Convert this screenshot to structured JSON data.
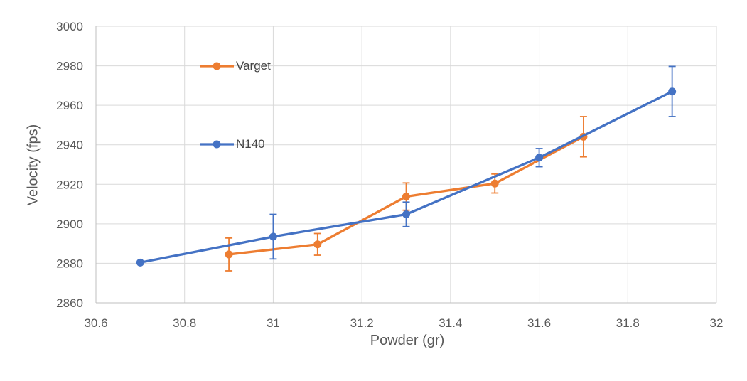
{
  "chart_data": {
    "type": "line",
    "title": "",
    "xlabel": "Powder (gr)",
    "ylabel": "Velocity (fps)",
    "xlim": [
      30.6,
      32
    ],
    "ylim": [
      2860,
      3000
    ],
    "grid": true,
    "legend_position": "inside plot, stacked entries upper-left",
    "xticks": {
      "values": [
        30.6,
        30.8,
        31,
        31.2,
        31.4,
        31.6,
        31.8,
        32
      ],
      "labels": [
        "30.6",
        "30.8",
        "31",
        "31.2",
        "31.4",
        "31.6",
        "31.8",
        "32"
      ]
    },
    "yticks": {
      "values": [
        2860,
        2880,
        2900,
        2920,
        2940,
        2960,
        2980,
        3000
      ],
      "labels": [
        "2860",
        "2880",
        "2900",
        "2920",
        "2940",
        "2960",
        "2980",
        "3000"
      ]
    },
    "series": [
      {
        "name": "Varget",
        "color": "#ED7D31",
        "x": [
          30.9,
          31.1,
          31.3,
          31.5,
          31.7
        ],
        "y": [
          2884.5,
          2889.6,
          2913.8,
          2920.4,
          2944.1
        ],
        "yerr": [
          8.3,
          5.5,
          6.9,
          4.8,
          10.2
        ]
      },
      {
        "name": "N140",
        "color": "#4472C4",
        "x": [
          30.7,
          31,
          31.3,
          31.6,
          31.9
        ],
        "y": [
          2880.4,
          2893.5,
          2904.8,
          2933.5,
          2967
        ],
        "yerr": [
          0,
          11.3,
          6.2,
          4.6,
          12.7
        ]
      }
    ],
    "colors": {
      "grid": "#D9D9D9",
      "axis": "#BFBFBF",
      "tick_text": "#595959",
      "title_text": "#595959"
    }
  }
}
